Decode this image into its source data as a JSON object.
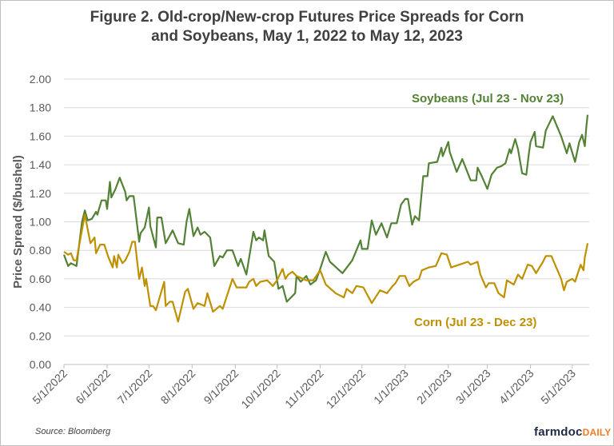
{
  "title_line1": "Figure 2. Old-crop/New-crop Futures Price Spreads for Corn",
  "title_line2": "and Soybeans, May 1, 2022 to May 12, 2023",
  "source": "Source:  Bloomberg",
  "logo": {
    "main": "farmdoc",
    "accent": "DAILY"
  },
  "chart_data": {
    "type": "line",
    "title": "Figure 2. Old-crop/New-crop Futures Price Spreads for Corn and Soybeans, May 1, 2022 to May 12, 2023",
    "ylabel": "Price Spread ($/bushel)",
    "xlabel": "",
    "ylim": [
      0,
      2
    ],
    "yticks": [
      "0.00",
      "0.20",
      "0.40",
      "0.60",
      "0.80",
      "1.00",
      "1.20",
      "1.40",
      "1.60",
      "1.80",
      "2.00"
    ],
    "xticks": [
      "5/1/2022",
      "6/1/2022",
      "7/1/2022",
      "8/1/2022",
      "9/1/2022",
      "10/1/2022",
      "11/1/2022",
      "12/1/2022",
      "1/1/2023",
      "2/1/2023",
      "3/1/2023",
      "4/1/2023",
      "5/1/2023"
    ],
    "xlim": [
      "2022-05-01",
      "2023-05-12"
    ],
    "grid": true,
    "series": [
      {
        "name": "Soybeans (Jul 23 - Nov 23)",
        "color": "#538135",
        "points": [
          [
            "2022-05-01",
            0.77
          ],
          [
            "2022-05-04",
            0.69
          ],
          [
            "2022-05-06",
            0.71
          ],
          [
            "2022-05-10",
            0.69
          ],
          [
            "2022-05-14",
            1.0
          ],
          [
            "2022-05-16",
            1.08
          ],
          [
            "2022-05-18",
            1.01
          ],
          [
            "2022-05-21",
            1.02
          ],
          [
            "2022-05-24",
            1.07
          ],
          [
            "2022-05-25",
            1.05
          ],
          [
            "2022-05-28",
            1.15
          ],
          [
            "2022-05-31",
            1.15
          ],
          [
            "2022-06-01",
            1.09
          ],
          [
            "2022-06-03",
            1.28
          ],
          [
            "2022-06-04",
            1.17
          ],
          [
            "2022-06-07",
            1.23
          ],
          [
            "2022-06-10",
            1.31
          ],
          [
            "2022-06-14",
            1.21
          ],
          [
            "2022-06-15",
            1.15
          ],
          [
            "2022-06-17",
            1.18
          ],
          [
            "2022-06-20",
            1.18
          ],
          [
            "2022-06-24",
            0.86
          ],
          [
            "2022-06-25",
            0.92
          ],
          [
            "2022-06-28",
            0.96
          ],
          [
            "2022-07-01",
            1.1
          ],
          [
            "2022-07-02",
            0.97
          ],
          [
            "2022-07-06",
            0.82
          ],
          [
            "2022-07-07",
            1.03
          ],
          [
            "2022-07-10",
            1.03
          ],
          [
            "2022-07-13",
            0.85
          ],
          [
            "2022-07-18",
            0.94
          ],
          [
            "2022-07-22",
            0.85
          ],
          [
            "2022-07-26",
            0.84
          ],
          [
            "2022-07-28",
            1.0
          ],
          [
            "2022-07-30",
            1.09
          ],
          [
            "2022-08-02",
            0.9
          ],
          [
            "2022-08-05",
            0.96
          ],
          [
            "2022-08-07",
            0.91
          ],
          [
            "2022-08-10",
            0.93
          ],
          [
            "2022-08-14",
            0.89
          ],
          [
            "2022-08-17",
            0.69
          ],
          [
            "2022-08-21",
            0.76
          ],
          [
            "2022-08-23",
            0.75
          ],
          [
            "2022-08-26",
            0.8
          ],
          [
            "2022-08-30",
            0.8
          ],
          [
            "2022-09-03",
            0.69
          ],
          [
            "2022-09-05",
            0.74
          ],
          [
            "2022-09-09",
            0.63
          ],
          [
            "2022-09-14",
            0.93
          ],
          [
            "2022-09-16",
            0.87
          ],
          [
            "2022-09-18",
            0.89
          ],
          [
            "2022-09-21",
            0.87
          ],
          [
            "2022-09-22",
            0.94
          ],
          [
            "2022-09-25",
            0.76
          ],
          [
            "2022-09-29",
            0.72
          ],
          [
            "2022-10-02",
            0.53
          ],
          [
            "2022-10-05",
            0.55
          ],
          [
            "2022-10-08",
            0.44
          ],
          [
            "2022-10-14",
            0.5
          ],
          [
            "2022-10-15",
            0.62
          ],
          [
            "2022-10-18",
            0.58
          ],
          [
            "2022-10-22",
            0.62
          ],
          [
            "2022-10-25",
            0.56
          ],
          [
            "2022-10-29",
            0.59
          ],
          [
            "2022-11-01",
            0.67
          ],
          [
            "2022-11-05",
            0.79
          ],
          [
            "2022-11-08",
            0.72
          ],
          [
            "2022-11-17",
            0.64
          ],
          [
            "2022-11-24",
            0.73
          ],
          [
            "2022-11-30",
            0.87
          ],
          [
            "2022-12-01",
            0.81
          ],
          [
            "2022-12-05",
            0.81
          ],
          [
            "2022-12-08",
            1.01
          ],
          [
            "2022-12-11",
            0.91
          ],
          [
            "2022-12-15",
            0.99
          ],
          [
            "2022-12-19",
            0.89
          ],
          [
            "2022-12-22",
            0.99
          ],
          [
            "2022-12-26",
            0.99
          ],
          [
            "2022-12-29",
            1.12
          ],
          [
            "2023-01-01",
            1.16
          ],
          [
            "2023-01-03",
            1.16
          ],
          [
            "2023-01-06",
            0.98
          ],
          [
            "2023-01-08",
            1.04
          ],
          [
            "2023-01-11",
            1.01
          ],
          [
            "2023-01-14",
            1.32
          ],
          [
            "2023-01-17",
            1.32
          ],
          [
            "2023-01-18",
            1.41
          ],
          [
            "2023-01-24",
            1.42
          ],
          [
            "2023-01-27",
            1.52
          ],
          [
            "2023-01-28",
            1.46
          ],
          [
            "2023-02-01",
            1.56
          ],
          [
            "2023-02-02",
            1.49
          ],
          [
            "2023-02-07",
            1.35
          ],
          [
            "2023-02-11",
            1.44
          ],
          [
            "2023-02-17",
            1.29
          ],
          [
            "2023-02-21",
            1.29
          ],
          [
            "2023-02-22",
            1.38
          ],
          [
            "2023-02-25",
            1.32
          ],
          [
            "2023-03-01",
            1.23
          ],
          [
            "2023-03-04",
            1.33
          ],
          [
            "2023-03-08",
            1.38
          ],
          [
            "2023-03-11",
            1.39
          ],
          [
            "2023-03-14",
            1.41
          ],
          [
            "2023-03-17",
            1.51
          ],
          [
            "2023-03-18",
            1.48
          ],
          [
            "2023-03-21",
            1.58
          ],
          [
            "2023-03-23",
            1.51
          ],
          [
            "2023-03-26",
            1.34
          ],
          [
            "2023-03-29",
            1.33
          ],
          [
            "2023-03-31",
            1.49
          ],
          [
            "2023-04-01",
            1.56
          ],
          [
            "2023-04-04",
            1.63
          ],
          [
            "2023-04-05",
            1.53
          ],
          [
            "2023-04-10",
            1.52
          ],
          [
            "2023-04-12",
            1.64
          ],
          [
            "2023-04-17",
            1.74
          ],
          [
            "2023-04-23",
            1.6
          ],
          [
            "2023-04-27",
            1.48
          ],
          [
            "2023-04-29",
            1.55
          ],
          [
            "2023-05-03",
            1.42
          ],
          [
            "2023-05-06",
            1.56
          ],
          [
            "2023-05-08",
            1.61
          ],
          [
            "2023-05-10",
            1.53
          ],
          [
            "2023-05-11",
            1.66
          ],
          [
            "2023-05-12",
            1.75
          ]
        ]
      },
      {
        "name": "Corn (Jul 23 - Dec 23)",
        "color": "#BF9000",
        "points": [
          [
            "2022-05-01",
            0.79
          ],
          [
            "2022-05-04",
            0.77
          ],
          [
            "2022-05-06",
            0.78
          ],
          [
            "2022-05-08",
            0.73
          ],
          [
            "2022-05-10",
            0.73
          ],
          [
            "2022-05-12",
            0.84
          ],
          [
            "2022-05-16",
            1.05
          ],
          [
            "2022-05-20",
            0.85
          ],
          [
            "2022-05-23",
            0.89
          ],
          [
            "2022-05-24",
            0.78
          ],
          [
            "2022-05-27",
            0.84
          ],
          [
            "2022-05-30",
            0.84
          ],
          [
            "2022-06-02",
            0.75
          ],
          [
            "2022-06-05",
            0.68
          ],
          [
            "2022-06-06",
            0.76
          ],
          [
            "2022-06-08",
            0.68
          ],
          [
            "2022-06-09",
            0.77
          ],
          [
            "2022-06-12",
            0.71
          ],
          [
            "2022-06-14",
            0.73
          ],
          [
            "2022-06-17",
            0.79
          ],
          [
            "2022-06-19",
            0.86
          ],
          [
            "2022-06-21",
            0.86
          ],
          [
            "2022-06-24",
            0.6
          ],
          [
            "2022-06-26",
            0.68
          ],
          [
            "2022-06-28",
            0.55
          ],
          [
            "2022-06-29",
            0.6
          ],
          [
            "2022-07-02",
            0.41
          ],
          [
            "2022-07-04",
            0.41
          ],
          [
            "2022-07-06",
            0.38
          ],
          [
            "2022-07-12",
            0.58
          ],
          [
            "2022-07-13",
            0.41
          ],
          [
            "2022-07-16",
            0.44
          ],
          [
            "2022-07-18",
            0.44
          ],
          [
            "2022-07-22",
            0.3
          ],
          [
            "2022-07-27",
            0.51
          ],
          [
            "2022-07-29",
            0.53
          ],
          [
            "2022-08-02",
            0.39
          ],
          [
            "2022-08-05",
            0.43
          ],
          [
            "2022-08-10",
            0.41
          ],
          [
            "2022-08-12",
            0.5
          ],
          [
            "2022-08-16",
            0.37
          ],
          [
            "2022-08-21",
            0.41
          ],
          [
            "2022-08-23",
            0.39
          ],
          [
            "2022-08-26",
            0.48
          ],
          [
            "2022-08-30",
            0.6
          ],
          [
            "2022-09-02",
            0.54
          ],
          [
            "2022-09-09",
            0.54
          ],
          [
            "2022-09-11",
            0.58
          ],
          [
            "2022-09-14",
            0.6
          ],
          [
            "2022-09-16",
            0.55
          ],
          [
            "2022-09-19",
            0.58
          ],
          [
            "2022-09-24",
            0.59
          ],
          [
            "2022-09-28",
            0.55
          ],
          [
            "2022-10-01",
            0.59
          ],
          [
            "2022-10-05",
            0.67
          ],
          [
            "2022-10-07",
            0.6
          ],
          [
            "2022-10-09",
            0.63
          ],
          [
            "2022-10-12",
            0.65
          ],
          [
            "2022-10-15",
            0.62
          ],
          [
            "2022-10-22",
            0.59
          ],
          [
            "2022-10-27",
            0.59
          ],
          [
            "2022-11-01",
            0.66
          ],
          [
            "2022-11-05",
            0.56
          ],
          [
            "2022-11-12",
            0.5
          ],
          [
            "2022-11-18",
            0.47
          ],
          [
            "2022-11-20",
            0.53
          ],
          [
            "2022-11-24",
            0.5
          ],
          [
            "2022-11-27",
            0.55
          ],
          [
            "2022-12-02",
            0.54
          ],
          [
            "2022-12-08",
            0.43
          ],
          [
            "2022-12-14",
            0.52
          ],
          [
            "2022-12-19",
            0.5
          ],
          [
            "2022-12-23",
            0.55
          ],
          [
            "2022-12-25",
            0.57
          ],
          [
            "2022-12-28",
            0.62
          ],
          [
            "2023-01-01",
            0.62
          ],
          [
            "2023-01-04",
            0.55
          ],
          [
            "2023-01-07",
            0.58
          ],
          [
            "2023-01-11",
            0.6
          ],
          [
            "2023-01-13",
            0.66
          ],
          [
            "2023-01-18",
            0.68
          ],
          [
            "2023-01-23",
            0.69
          ],
          [
            "2023-01-27",
            0.78
          ],
          [
            "2023-01-31",
            0.77
          ],
          [
            "2023-02-03",
            0.68
          ],
          [
            "2023-02-09",
            0.7
          ],
          [
            "2023-02-15",
            0.72
          ],
          [
            "2023-02-17",
            0.7
          ],
          [
            "2023-02-22",
            0.72
          ],
          [
            "2023-02-24",
            0.63
          ],
          [
            "2023-02-28",
            0.54
          ],
          [
            "2023-03-02",
            0.57
          ],
          [
            "2023-03-06",
            0.57
          ],
          [
            "2023-03-09",
            0.5
          ],
          [
            "2023-03-13",
            0.47
          ],
          [
            "2023-03-15",
            0.59
          ],
          [
            "2023-03-20",
            0.56
          ],
          [
            "2023-03-23",
            0.63
          ],
          [
            "2023-03-26",
            0.6
          ],
          [
            "2023-03-30",
            0.7
          ],
          [
            "2023-04-02",
            0.69
          ],
          [
            "2023-04-05",
            0.64
          ],
          [
            "2023-04-10",
            0.72
          ],
          [
            "2023-04-12",
            0.76
          ],
          [
            "2023-04-16",
            0.76
          ],
          [
            "2023-04-23",
            0.6
          ],
          [
            "2023-04-25",
            0.52
          ],
          [
            "2023-04-27",
            0.58
          ],
          [
            "2023-05-01",
            0.6
          ],
          [
            "2023-05-03",
            0.58
          ],
          [
            "2023-05-07",
            0.7
          ],
          [
            "2023-05-09",
            0.66
          ],
          [
            "2023-05-10",
            0.75
          ],
          [
            "2023-05-12",
            0.85
          ]
        ]
      }
    ]
  }
}
